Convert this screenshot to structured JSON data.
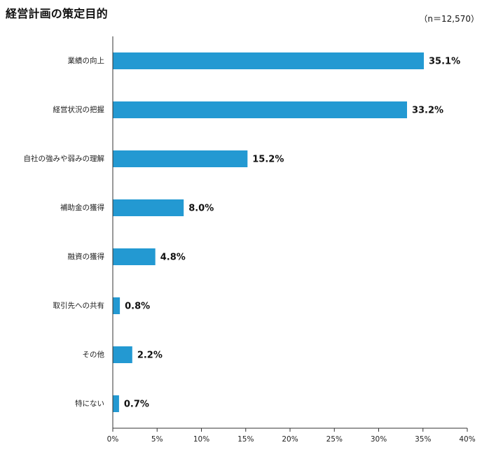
{
  "title": "経営計画の策定目的",
  "note": "（n＝12,570）",
  "colors": {
    "bar": "#2399D2",
    "axis": "#333333",
    "text": "#111111"
  },
  "chart_data": {
    "type": "bar",
    "orientation": "horizontal",
    "title": "経営計画の策定目的",
    "categories": [
      "業績の向上",
      "経営状況の把握",
      "自社の強みや弱みの理解",
      "補助金の獲得",
      "融資の獲得",
      "取引先への共有",
      "その他",
      "特にない"
    ],
    "values": [
      35.1,
      33.2,
      15.2,
      8.0,
      4.8,
      0.8,
      2.2,
      0.7
    ],
    "value_labels": [
      "35.1%",
      "33.2%",
      "15.2%",
      "8.0%",
      "4.8%",
      "0.8%",
      "2.2%",
      "0.7%"
    ],
    "xlim": [
      0,
      40
    ],
    "xticks": [
      0,
      5,
      10,
      15,
      20,
      25,
      30,
      35,
      40
    ],
    "xtick_labels": [
      "0%",
      "5%",
      "10%",
      "15%",
      "20%",
      "25%",
      "30%",
      "35%",
      "40%"
    ],
    "xlabel": "",
    "ylabel": "",
    "grid": false,
    "legend": "none"
  }
}
